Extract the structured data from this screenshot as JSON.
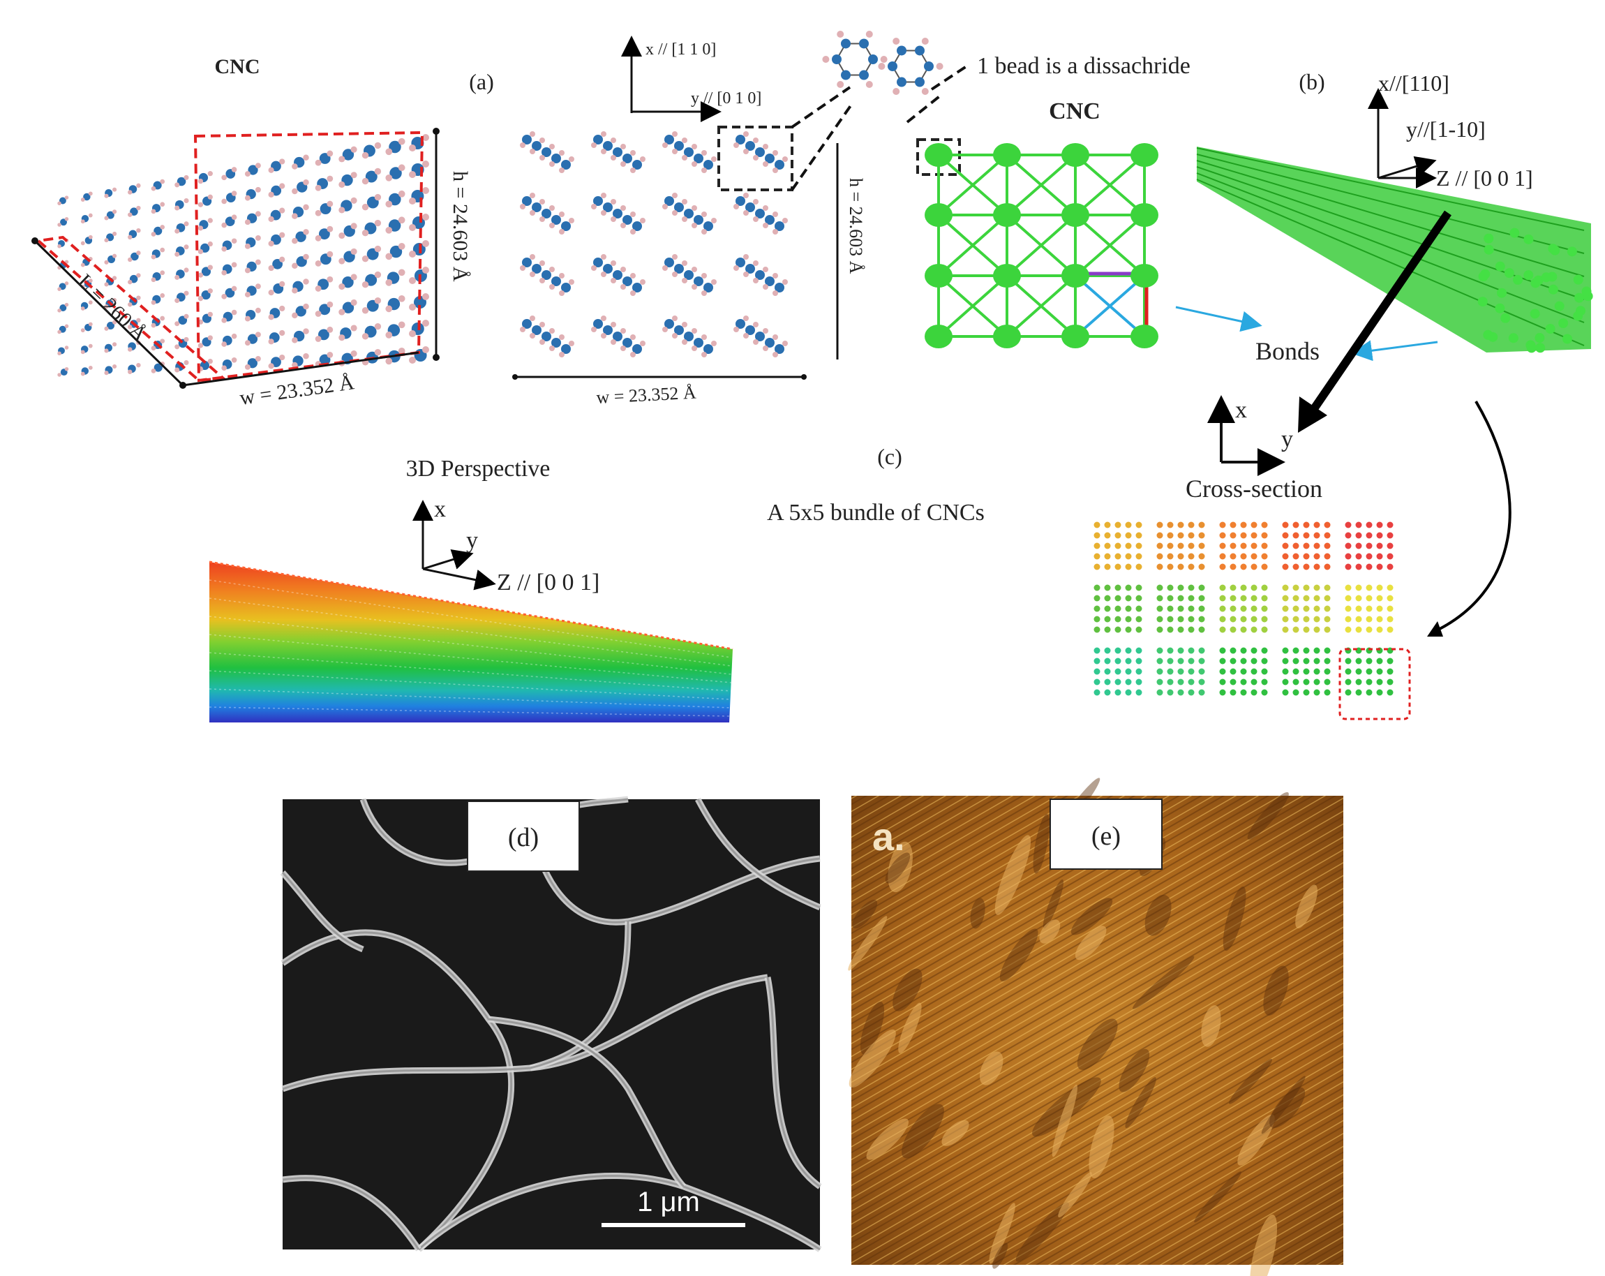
{
  "panel_a": {
    "cnc_title": "CNC",
    "label": "(a)",
    "length_label": "L = 260 Å",
    "height_label": "h = 24.603 Å",
    "width_label": "w = 23.352 Å",
    "axis_x": "x // [1 1 0]",
    "axis_y": "y // [0 1 0]",
    "cross_height_label": "h = 24.603 Å",
    "cross_width_label": "w = 23.352 Å",
    "bead_note": "1 bead is a dissachride"
  },
  "panel_b": {
    "label": "(b)",
    "cnc_title": "CNC",
    "axis_x": "x//[110]",
    "axis_y": "y//[1-10]",
    "axis_z": "Z // [0 0 1]",
    "bonds_label": "Bonds"
  },
  "panel_c": {
    "label": "(c)",
    "perspective_label": "3D Perspective",
    "bundle_label": "A 5x5 bundle of CNCs",
    "axis_x": "x",
    "axis_y": "y",
    "axis_z": "Z // [0 0 1]",
    "cs_axis_x": "x",
    "cs_axis_y": "y",
    "cross_section_label": "Cross-section"
  },
  "panel_d": {
    "label": "(d)",
    "scale_bar": "1 μm"
  },
  "panel_e": {
    "label": "(e)",
    "corner_tag": "a."
  },
  "colors": {
    "bead_green": "#3cd43c",
    "bond_red": "#e02020",
    "bond_blue": "#2aa8e0",
    "bond_purple": "#8a3cc8",
    "outline_red": "#e02020",
    "carbon_blue": "#2a6fb0",
    "hydrogen_pink": "#e0b0b4",
    "afm_brown": "#b5701c"
  }
}
